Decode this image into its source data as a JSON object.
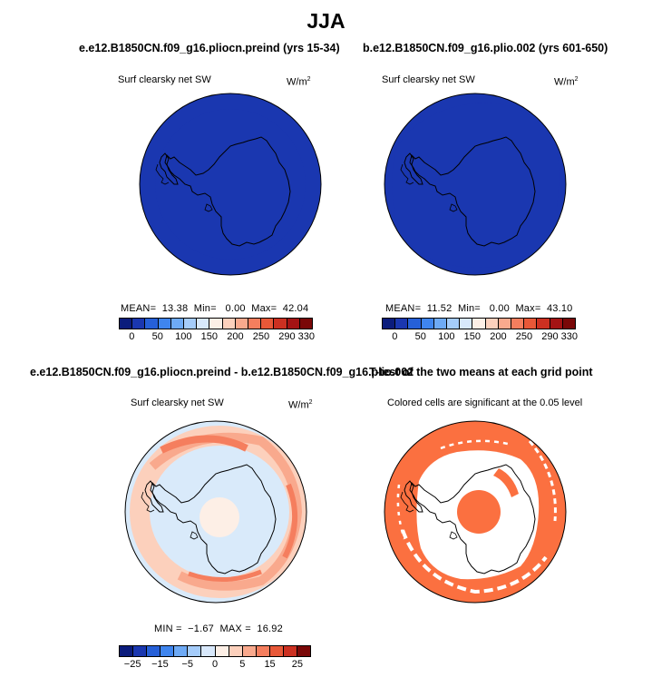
{
  "title": "JJA",
  "colors": {
    "land_outline": "#000000",
    "sig_fill": "#FB7040",
    "diff_background": "#D9EAFA"
  },
  "chart_data": [
    {
      "id": "panel1",
      "type": "heatmap",
      "title": "e.e12.B1850CN.f09_g16.pliocn.preind (yrs 15-34)",
      "subtitle": "Surf clearsky net SW",
      "units": "W/m",
      "units_sup": "2",
      "stats": {
        "mean_label": "MEAN=",
        "mean": "13.38",
        "min_label": "Min=",
        "min": "0.00",
        "max_label": "Max=",
        "max": "42.04"
      },
      "colorbar": {
        "levels": [
          "0",
          "50",
          "100",
          "150",
          "200",
          "250",
          "290",
          "330"
        ],
        "colors": [
          "#0B1C7C",
          "#1A37B0",
          "#2660D8",
          "#3F85EE",
          "#6EAAF5",
          "#A5CCFA",
          "#D8E8FB",
          "#FDEFE6",
          "#FCD0BC",
          "#F9A98D",
          "#F57E5E",
          "#E85838",
          "#CC3021",
          "#A41314",
          "#7A0808"
        ]
      },
      "field": {
        "outer_ring_value": 42,
        "inner_value": 5
      }
    },
    {
      "id": "panel2",
      "type": "heatmap",
      "title": "b.e12.B1850CN.f09_g16.plio.002 (yrs 601-650)",
      "subtitle": "Surf clearsky net SW",
      "units": "W/m",
      "units_sup": "2",
      "stats": {
        "mean_label": "MEAN=",
        "mean": "11.52",
        "min_label": "Min=",
        "min": "0.00",
        "max_label": "Max=",
        "max": "43.10"
      },
      "colorbar": {
        "levels": [
          "0",
          "50",
          "100",
          "150",
          "200",
          "250",
          "290",
          "330"
        ],
        "colors": [
          "#0B1C7C",
          "#1A37B0",
          "#2660D8",
          "#3F85EE",
          "#6EAAF5",
          "#A5CCFA",
          "#D8E8FB",
          "#FDEFE6",
          "#FCD0BC",
          "#F9A98D",
          "#F57E5E",
          "#E85838",
          "#CC3021",
          "#A41314",
          "#7A0808"
        ]
      },
      "field": {
        "outer_ring_value": 43,
        "inner_value": 4
      }
    },
    {
      "id": "panel3",
      "type": "heatmap",
      "title": "e.e12.B1850CN.f09_g16.pliocn.preind - b.e12.B1850CN.f09_g16.plio.002",
      "subtitle": "Surf clearsky net SW",
      "units": "W/m",
      "units_sup": "2",
      "stats": {
        "min_label": "MIN =",
        "min": "−1.67",
        "max_label": "MAX =",
        "max": "16.92"
      },
      "colorbar": {
        "levels": [
          "−25",
          "−15",
          "−5",
          "0",
          "5",
          "15",
          "25"
        ],
        "colors": [
          "#0B1C7C",
          "#1A37B0",
          "#2660D8",
          "#3F85EE",
          "#6EAAF5",
          "#A5CCFA",
          "#D8E8FB",
          "#FDEFE6",
          "#FCD0BC",
          "#F9A98D",
          "#F57E5E",
          "#E85838",
          "#CC3021",
          "#7A0808"
        ]
      }
    },
    {
      "id": "panel4",
      "type": "heatmap",
      "title": "T-test of the two means at each grid point",
      "subtitle": "Colored cells are significant at the 0.05 level"
    }
  ]
}
